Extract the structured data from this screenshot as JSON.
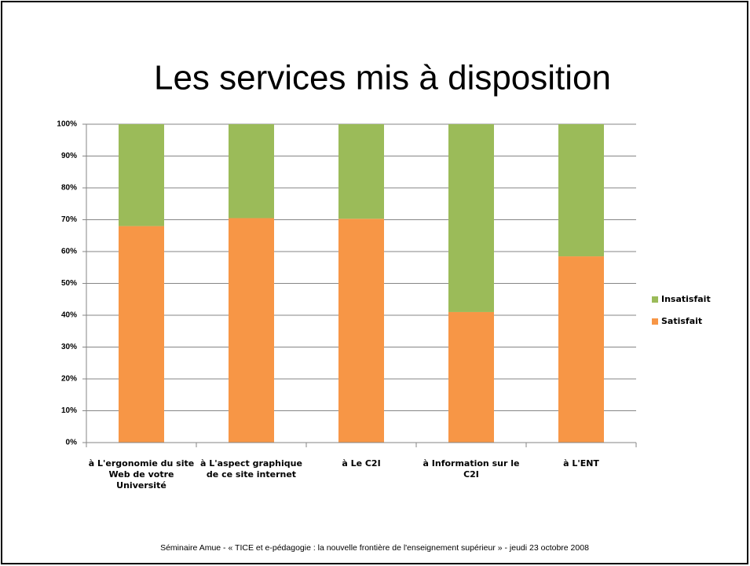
{
  "title": "Les services mis à disposition",
  "footer": "Séminaire Amue - « TICE et e-pédagogie : la nouvelle frontière de l'enseignement supérieur » - jeudi 23 octobre 2008",
  "chart_data": {
    "type": "stacked_bar",
    "categories": [
      "à L'ergonomie du site Web de  votre Université",
      "à L'aspect graphique de ce site internet",
      "à Le C2I",
      "à Information sur le C2I",
      "à L'ENT"
    ],
    "series": [
      {
        "name": "Satisfait",
        "color": "#f79646",
        "values": [
          68,
          70.5,
          70.3,
          41,
          58.5
        ]
      },
      {
        "name": "Insatisfait",
        "color": "#9bbb59",
        "values": [
          32,
          29.5,
          29.7,
          59,
          41.5
        ]
      }
    ],
    "ylim": [
      0,
      100
    ],
    "yticks": [
      {
        "value": 0,
        "label": "0%"
      },
      {
        "value": 10,
        "label": "10%"
      },
      {
        "value": 20,
        "label": "20%"
      },
      {
        "value": 30,
        "label": "30%"
      },
      {
        "value": 40,
        "label": "40%"
      },
      {
        "value": 50,
        "label": "50%"
      },
      {
        "value": 60,
        "label": "60%"
      },
      {
        "value": 70,
        "label": "70%"
      },
      {
        "value": 80,
        "label": "80%"
      },
      {
        "value": 90,
        "label": "90%"
      },
      {
        "value": 100,
        "label": "100%"
      }
    ],
    "grid": true,
    "legend": "right"
  }
}
